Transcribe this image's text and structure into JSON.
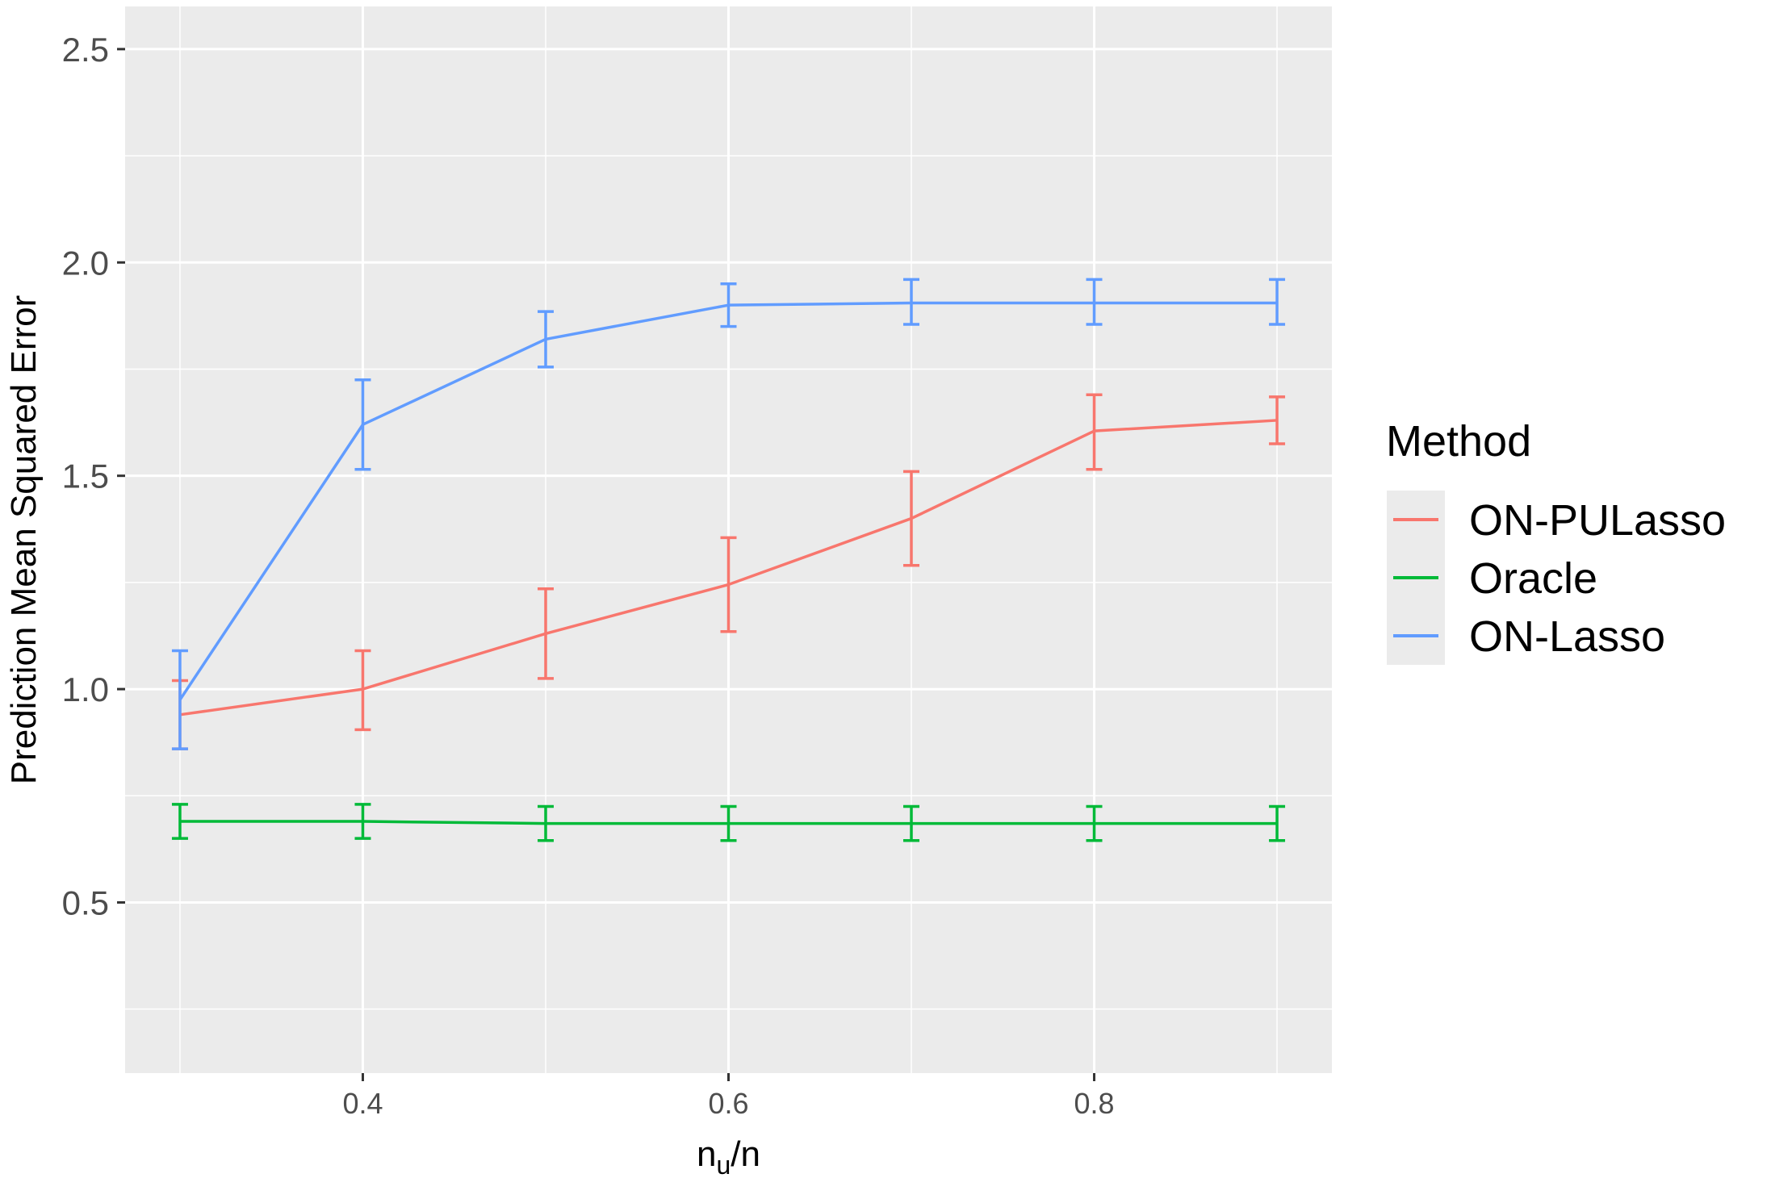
{
  "chart_data": {
    "type": "line",
    "title": "",
    "xlabel_main": "n",
    "xlabel_sub": "u",
    "xlabel_tail": "/n",
    "ylabel": "Prediction Mean Squared Error",
    "xlim": [
      0.27,
      0.93
    ],
    "ylim": [
      0.1,
      2.6
    ],
    "x_ticks": [
      0.4,
      0.6,
      0.8
    ],
    "x_tick_labels": [
      "0.4",
      "0.6",
      "0.8"
    ],
    "y_ticks": [
      0.5,
      1.0,
      1.5,
      2.0,
      2.5
    ],
    "y_tick_labels": [
      "0.5",
      "1.0",
      "1.5",
      "2.0",
      "2.5"
    ],
    "grid": true,
    "legend": {
      "title": "Method",
      "position": "right"
    },
    "x": [
      0.3,
      0.4,
      0.5,
      0.6,
      0.7,
      0.8,
      0.9
    ],
    "series": [
      {
        "name": "ON-PULasso",
        "color": "#F8766D",
        "values": [
          0.94,
          1.0,
          1.13,
          1.245,
          1.4,
          1.605,
          1.63
        ],
        "lower": [
          0.86,
          0.905,
          1.025,
          1.135,
          1.29,
          1.515,
          1.575
        ],
        "upper": [
          1.02,
          1.09,
          1.235,
          1.355,
          1.51,
          1.69,
          1.685
        ]
      },
      {
        "name": "Oracle",
        "color": "#00BA38",
        "values": [
          0.69,
          0.69,
          0.685,
          0.685,
          0.685,
          0.685,
          0.685
        ],
        "lower": [
          0.65,
          0.65,
          0.645,
          0.645,
          0.645,
          0.645,
          0.645
        ],
        "upper": [
          0.73,
          0.73,
          0.725,
          0.725,
          0.725,
          0.725,
          0.725
        ]
      },
      {
        "name": "ON-Lasso",
        "color": "#619CFF",
        "values": [
          0.975,
          1.62,
          1.82,
          1.9,
          1.905,
          1.905,
          1.905
        ],
        "lower": [
          0.86,
          1.515,
          1.755,
          1.85,
          1.855,
          1.855,
          1.855
        ],
        "upper": [
          1.09,
          1.725,
          1.885,
          1.95,
          1.96,
          1.96,
          1.96
        ]
      }
    ]
  }
}
